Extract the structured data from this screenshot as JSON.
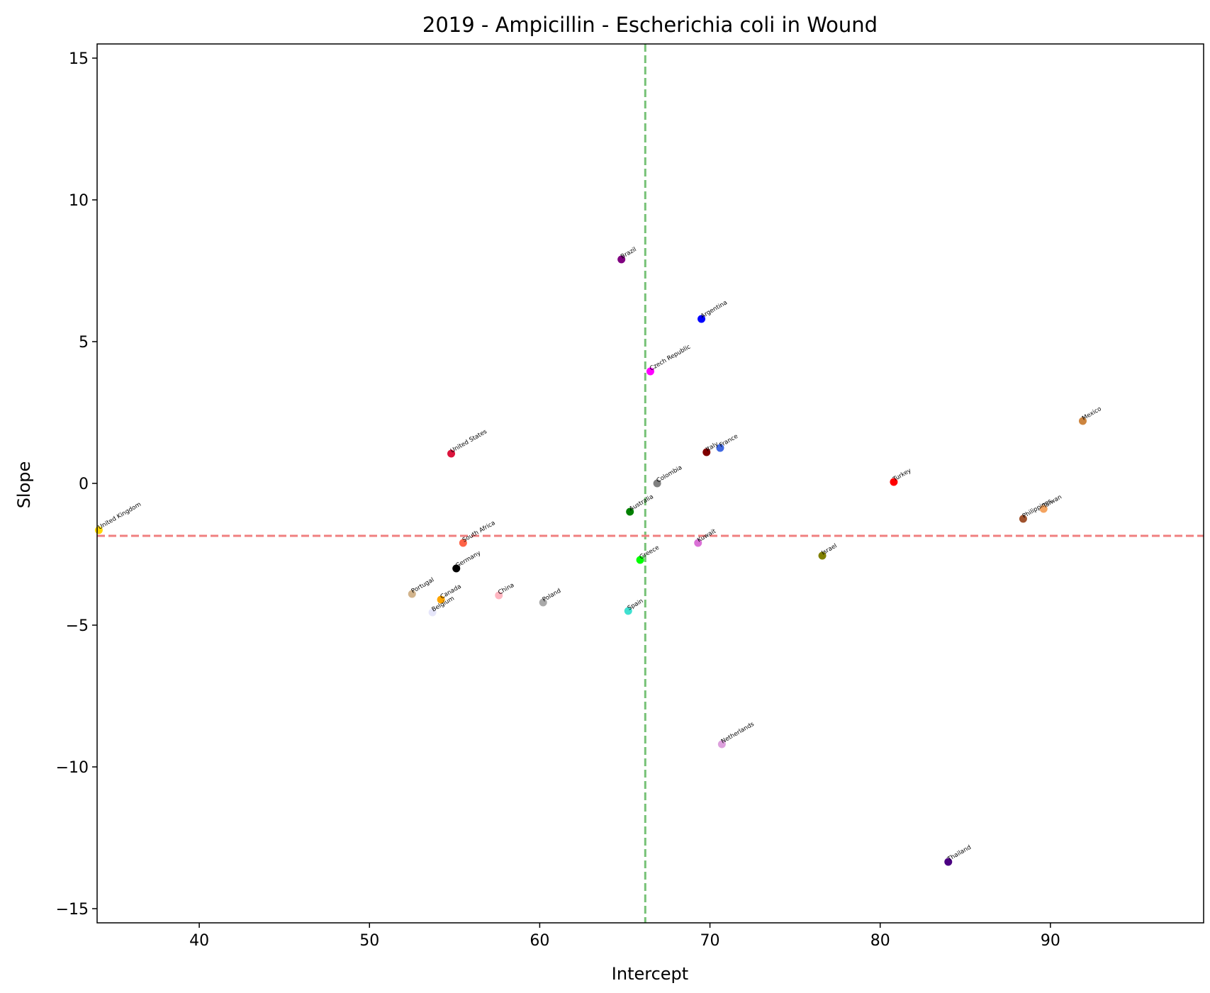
{
  "chart_data": {
    "type": "scatter",
    "title": "2019 - Ampicillin - Escherichia coli in Wound",
    "xlabel": "Intercept",
    "ylabel": "Slope",
    "xlim": [
      34,
      99
    ],
    "ylim": [
      -15.5,
      15.5
    ],
    "xticks": [
      40,
      50,
      60,
      70,
      80,
      90
    ],
    "yticks": [
      15,
      10,
      5,
      0,
      -5,
      -10,
      -15
    ],
    "xtick_labels": [
      "40",
      "50",
      "60",
      "70",
      "80",
      "90"
    ],
    "ytick_labels": [
      "15",
      "10",
      "5",
      "0",
      "−5",
      "−10",
      "−15"
    ],
    "grid": false,
    "legend": "none",
    "reference_lines": [
      {
        "orientation": "vertical",
        "value": 66.2,
        "color": "#77c277",
        "style": "dashed"
      },
      {
        "orientation": "horizontal",
        "value": -1.85,
        "color": "#f08080",
        "style": "dashed"
      }
    ],
    "points": [
      {
        "label": "Brazil",
        "x": 64.8,
        "y": 7.9,
        "color": "#800080"
      },
      {
        "label": "Argentina",
        "x": 69.5,
        "y": 5.8,
        "color": "#0000ff"
      },
      {
        "label": "Czech Republic",
        "x": 66.5,
        "y": 3.95,
        "color": "#ff00ff"
      },
      {
        "label": "Mexico",
        "x": 91.9,
        "y": 2.2,
        "color": "#cd853f"
      },
      {
        "label": "United States",
        "x": 54.8,
        "y": 1.05,
        "color": "#dc143c"
      },
      {
        "label": "Italy",
        "x": 69.8,
        "y": 1.1,
        "color": "#800000"
      },
      {
        "label": "France",
        "x": 70.6,
        "y": 1.25,
        "color": "#4169e1"
      },
      {
        "label": "Colombia",
        "x": 66.9,
        "y": 0.0,
        "color": "#808080"
      },
      {
        "label": "Turkey",
        "x": 80.8,
        "y": 0.05,
        "color": "#ff0000"
      },
      {
        "label": "Taiwan",
        "x": 89.6,
        "y": -0.9,
        "color": "#f4a460"
      },
      {
        "label": "Philippines",
        "x": 88.4,
        "y": -1.25,
        "color": "#a0522d"
      },
      {
        "label": "Australia",
        "x": 65.3,
        "y": -1.0,
        "color": "#008000"
      },
      {
        "label": "United Kingdom",
        "x": 34.1,
        "y": -1.65,
        "color": "#ffd700"
      },
      {
        "label": "South Africa",
        "x": 55.5,
        "y": -2.1,
        "color": "#ff6347"
      },
      {
        "label": "Kuwait",
        "x": 69.3,
        "y": -2.1,
        "color": "#da70d6"
      },
      {
        "label": "Israel",
        "x": 76.6,
        "y": -2.55,
        "color": "#808000"
      },
      {
        "label": "Greece",
        "x": 65.9,
        "y": -2.7,
        "color": "#00ff00"
      },
      {
        "label": "Germany",
        "x": 55.1,
        "y": -3.0,
        "color": "#000000"
      },
      {
        "label": "Portugal",
        "x": 52.5,
        "y": -3.9,
        "color": "#d2b48c"
      },
      {
        "label": "Canada",
        "x": 54.2,
        "y": -4.1,
        "color": "#ffa500"
      },
      {
        "label": "China",
        "x": 57.6,
        "y": -3.95,
        "color": "#ffb6c1"
      },
      {
        "label": "Poland",
        "x": 60.2,
        "y": -4.2,
        "color": "#a9a9a9"
      },
      {
        "label": "Belgium",
        "x": 53.7,
        "y": -4.55,
        "color": "#e6e6fa"
      },
      {
        "label": "Spain",
        "x": 65.2,
        "y": -4.5,
        "color": "#40e0d0"
      },
      {
        "label": "Netherlands",
        "x": 70.7,
        "y": -9.2,
        "color": "#dda0dd"
      },
      {
        "label": "Thailand",
        "x": 84.0,
        "y": -13.35,
        "color": "#4b0082"
      }
    ]
  }
}
